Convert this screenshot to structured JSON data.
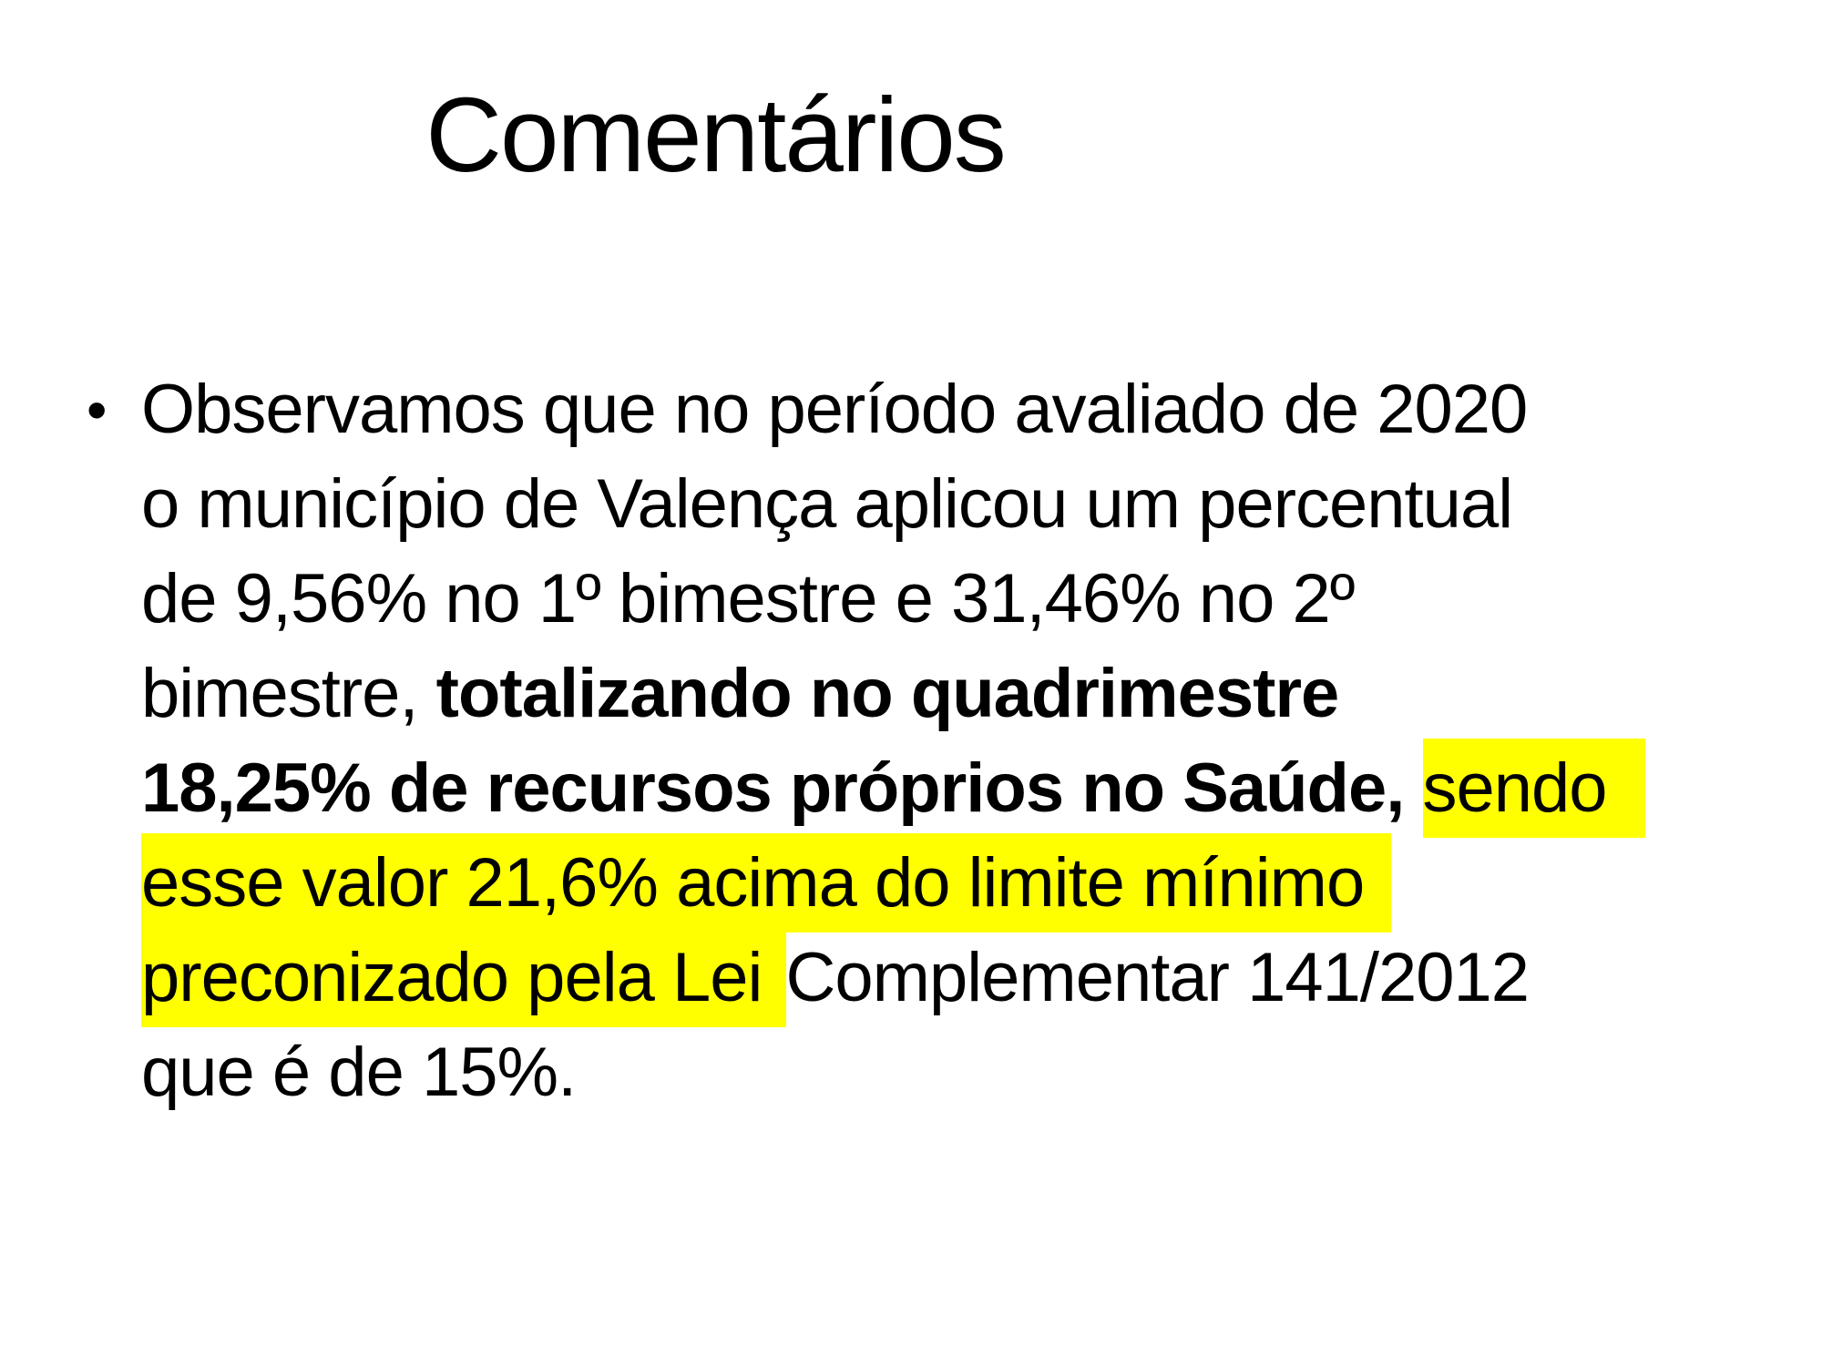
{
  "slide": {
    "title": "Comentários",
    "bullet_char": "•",
    "colors": {
      "background": "#FFFFFF",
      "text": "#000000",
      "highlight": "#FFFF00"
    },
    "bullet_paragraph": {
      "full_text": "Observamos que no período avaliado de 2020 o município de Valença aplicou um percentual de 9,56% no 1º bimestre e 31,46% no 2º bimestre, totalizando no quadrimestre 18,25% de recursos próprios no Saúde, sendo esse valor 21,6% acima do limite mínimo preconizado pela Lei Complementar 141/2012 que é de 15%.",
      "lines": [
        [
          {
            "t": "Observamos que no período avaliado de 2020"
          }
        ],
        [
          {
            "t": "o município de Valença aplicou um percentual"
          }
        ],
        [
          {
            "t": "de 9,56% no 1º bimestre e 31,46% no 2º"
          }
        ],
        [
          {
            "t": "bimestre, "
          },
          {
            "t": "totalizando no quadrimestre",
            "b": true
          }
        ],
        [
          {
            "t": "18,25% de recursos próprios no Saúde,",
            "b": true
          },
          {
            "t": " "
          },
          {
            "t": "sendo",
            "h": true,
            "pad_r": 42
          }
        ],
        [
          {
            "t": "esse valor 21,6% acima do limite mínimo",
            "h": true,
            "pad_r": 30
          }
        ],
        [
          {
            "t": "preconizado pela Lei ",
            "h": true,
            "pad_r": 6
          },
          {
            "t": "Complementar 141/2012"
          }
        ],
        [
          {
            "t": "que é de 15%."
          }
        ]
      ]
    }
  }
}
